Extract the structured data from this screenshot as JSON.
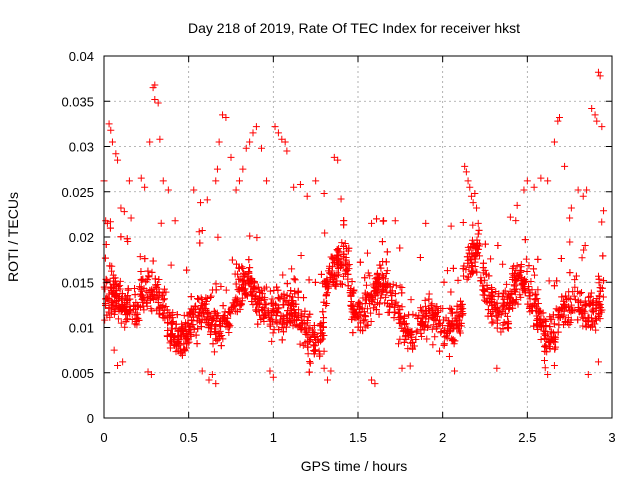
{
  "chart_data": {
    "type": "scatter",
    "title": "Day 218 of 2019, Rate Of TEC Index for receiver hkst",
    "xlabel": "GPS time / hours",
    "ylabel": "ROTI / TECUs",
    "xlim": [
      0,
      3
    ],
    "ylim": [
      0,
      0.04
    ],
    "x_ticks": [
      "0",
      "0.5",
      "1",
      "1.5",
      "2",
      "2.5",
      "3"
    ],
    "y_ticks": [
      "0",
      "0.005",
      "0.01",
      "0.015",
      "0.02",
      "0.025",
      "0.03",
      "0.035",
      "0.04"
    ],
    "x_tick_values": [
      0,
      0.5,
      1,
      1.5,
      2,
      2.5,
      3
    ],
    "y_tick_values": [
      0,
      0.005,
      0.01,
      0.015,
      0.02,
      0.025,
      0.03,
      0.035,
      0.04
    ],
    "grid": true,
    "marker": "+",
    "color": "#ff0000",
    "series": [
      {
        "name": "ROTI",
        "points": [
          [
            0.0,
            0.0262
          ],
          [
            0.01,
            0.0218
          ],
          [
            0.02,
            0.0215
          ],
          [
            0.03,
            0.0325
          ],
          [
            0.04,
            0.0318
          ],
          [
            0.05,
            0.0305
          ],
          [
            0.07,
            0.0292
          ],
          [
            0.08,
            0.0285
          ],
          [
            0.1,
            0.0232
          ],
          [
            0.12,
            0.0228
          ],
          [
            0.14,
            0.0195
          ],
          [
            0.15,
            0.0262
          ],
          [
            0.16,
            0.0221
          ],
          [
            0.22,
            0.0265
          ],
          [
            0.24,
            0.0255
          ],
          [
            0.27,
            0.0305
          ],
          [
            0.29,
            0.0365
          ],
          [
            0.3,
            0.0368
          ],
          [
            0.3,
            0.0352
          ],
          [
            0.32,
            0.0348
          ],
          [
            0.33,
            0.0308
          ],
          [
            0.35,
            0.0262
          ],
          [
            0.38,
            0.0252
          ],
          [
            0.42,
            0.0218
          ],
          [
            0.53,
            0.0252
          ],
          [
            0.57,
            0.0238
          ],
          [
            0.61,
            0.0241
          ],
          [
            0.66,
            0.0262
          ],
          [
            0.67,
            0.0275
          ],
          [
            0.68,
            0.0305
          ],
          [
            0.7,
            0.0335
          ],
          [
            0.72,
            0.0332
          ],
          [
            0.75,
            0.0288
          ],
          [
            0.78,
            0.0252
          ],
          [
            0.8,
            0.0262
          ],
          [
            0.82,
            0.0275
          ],
          [
            0.84,
            0.0298
          ],
          [
            0.86,
            0.0305
          ],
          [
            0.88,
            0.0315
          ],
          [
            0.9,
            0.0322
          ],
          [
            0.93,
            0.0298
          ],
          [
            0.96,
            0.0262
          ],
          [
            1.01,
            0.0322
          ],
          [
            1.03,
            0.0315
          ],
          [
            1.05,
            0.0308
          ],
          [
            1.07,
            0.0305
          ],
          [
            1.08,
            0.0295
          ],
          [
            1.12,
            0.0255
          ],
          [
            1.16,
            0.0258
          ],
          [
            1.2,
            0.0245
          ],
          [
            1.25,
            0.0262
          ],
          [
            1.3,
            0.0248
          ],
          [
            1.36,
            0.0288
          ],
          [
            1.38,
            0.0285
          ],
          [
            1.4,
            0.0242
          ],
          [
            1.58,
            0.0215
          ],
          [
            1.72,
            0.0218
          ],
          [
            1.9,
            0.0215
          ],
          [
            2.05,
            0.0212
          ],
          [
            2.13,
            0.0278
          ],
          [
            2.14,
            0.0272
          ],
          [
            2.15,
            0.0262
          ],
          [
            2.16,
            0.0255
          ],
          [
            2.17,
            0.0245
          ],
          [
            2.18,
            0.0238
          ],
          [
            2.19,
            0.0248
          ],
          [
            2.2,
            0.0232
          ],
          [
            2.21,
            0.0215
          ],
          [
            2.4,
            0.0222
          ],
          [
            2.44,
            0.0235
          ],
          [
            2.48,
            0.0252
          ],
          [
            2.5,
            0.0262
          ],
          [
            2.54,
            0.0255
          ],
          [
            2.58,
            0.0265
          ],
          [
            2.62,
            0.0262
          ],
          [
            2.66,
            0.0305
          ],
          [
            2.68,
            0.0328
          ],
          [
            2.69,
            0.0332
          ],
          [
            2.72,
            0.0278
          ],
          [
            2.76,
            0.0232
          ],
          [
            2.8,
            0.0252
          ],
          [
            2.83,
            0.0245
          ],
          [
            2.85,
            0.0252
          ],
          [
            2.88,
            0.0342
          ],
          [
            2.9,
            0.0335
          ],
          [
            2.91,
            0.0328
          ],
          [
            2.92,
            0.0382
          ],
          [
            2.93,
            0.0378
          ],
          [
            2.94,
            0.0322
          ],
          [
            2.95,
            0.0229
          ],
          [
            0.03,
            0.0122
          ],
          [
            0.06,
            0.0075
          ],
          [
            0.08,
            0.0058
          ],
          [
            0.11,
            0.0062
          ],
          [
            0.26,
            0.0051
          ],
          [
            0.28,
            0.0048
          ],
          [
            0.58,
            0.0052
          ],
          [
            0.62,
            0.0042
          ],
          [
            0.64,
            0.0048
          ],
          [
            0.66,
            0.0038
          ],
          [
            0.98,
            0.0052
          ],
          [
            1.0,
            0.0045
          ],
          [
            1.3,
            0.0055
          ],
          [
            1.32,
            0.0042
          ],
          [
            1.34,
            0.0052
          ],
          [
            1.58,
            0.0042
          ],
          [
            1.6,
            0.0038
          ],
          [
            1.76,
            0.0055
          ],
          [
            2.04,
            0.0068
          ],
          [
            2.07,
            0.0052
          ],
          [
            2.32,
            0.0055
          ],
          [
            2.62,
            0.0048
          ],
          [
            2.66,
            0.0058
          ],
          [
            2.86,
            0.0048
          ],
          [
            2.92,
            0.0062
          ]
        ]
      }
    ]
  }
}
